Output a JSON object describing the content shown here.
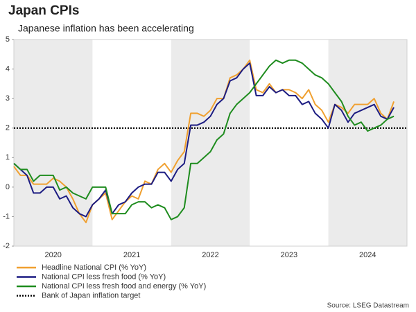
{
  "chart_data": {
    "type": "line",
    "title": "Japan CPIs",
    "subtitle": "Japanese inflation has been accelerating",
    "source": "Source: LSEG Datastream",
    "x": [
      2020,
      2020.083,
      2020.167,
      2020.25,
      2020.333,
      2020.417,
      2020.5,
      2020.583,
      2020.667,
      2020.75,
      2020.833,
      2020.917,
      2021,
      2021.083,
      2021.167,
      2021.25,
      2021.333,
      2021.417,
      2021.5,
      2021.583,
      2021.667,
      2021.75,
      2021.833,
      2021.917,
      2022,
      2022.083,
      2022.167,
      2022.25,
      2022.333,
      2022.417,
      2022.5,
      2022.583,
      2022.667,
      2022.75,
      2022.833,
      2022.917,
      2023,
      2023.083,
      2023.167,
      2023.25,
      2023.333,
      2023.417,
      2023.5,
      2023.583,
      2023.667,
      2023.75,
      2023.833,
      2023.917,
      2024,
      2024.083,
      2024.167,
      2024.25,
      2024.333,
      2024.417,
      2024.5,
      2024.583,
      2024.667,
      2024.75,
      2024.833
    ],
    "xlim": [
      2020,
      2025
    ],
    "xticks": [
      {
        "value": 2020.5,
        "label": "2020"
      },
      {
        "value": 2021.5,
        "label": "2021"
      },
      {
        "value": 2022.5,
        "label": "2022"
      },
      {
        "value": 2023.5,
        "label": "2023"
      },
      {
        "value": 2024.5,
        "label": "2024"
      }
    ],
    "shaded_bands": [
      [
        2020,
        2021
      ],
      [
        2022,
        2023
      ],
      [
        2024,
        2025
      ]
    ],
    "ylim": [
      -2,
      5
    ],
    "yticks": [
      -2,
      -1,
      0,
      1,
      2,
      3,
      4,
      5
    ],
    "series": [
      {
        "name": "Headline National CPI (% YoY)",
        "color": "#f0a030",
        "values": [
          0.7,
          0.4,
          0.4,
          0.1,
          0.1,
          0.1,
          0.3,
          0.2,
          0.0,
          -0.4,
          -0.9,
          -1.2,
          -0.6,
          -0.4,
          -0.2,
          -1.1,
          -0.8,
          -0.5,
          -0.3,
          -0.4,
          0.2,
          0.1,
          0.6,
          0.8,
          0.5,
          0.9,
          1.2,
          2.5,
          2.5,
          2.4,
          2.6,
          3.0,
          3.0,
          3.7,
          3.8,
          4.0,
          4.3,
          3.3,
          3.2,
          3.5,
          3.2,
          3.3,
          3.3,
          3.2,
          3.0,
          3.3,
          2.8,
          2.6,
          2.2,
          2.8,
          2.7,
          2.5,
          2.8,
          2.8,
          2.8,
          3.0,
          2.5,
          2.3,
          2.9
        ]
      },
      {
        "name": "National CPI less fresh food (% YoY)",
        "color": "#1c1c82",
        "values": [
          0.8,
          0.6,
          0.4,
          -0.2,
          -0.2,
          0.0,
          0.0,
          -0.4,
          -0.3,
          -0.7,
          -0.9,
          -1.0,
          -0.6,
          -0.4,
          -0.1,
          -0.9,
          -0.6,
          -0.5,
          -0.2,
          0.0,
          0.1,
          0.1,
          0.5,
          0.5,
          0.2,
          0.6,
          0.8,
          2.1,
          2.1,
          2.2,
          2.4,
          2.8,
          3.0,
          3.6,
          3.7,
          4.0,
          4.2,
          3.1,
          3.1,
          3.4,
          3.2,
          3.3,
          3.1,
          3.1,
          2.8,
          2.9,
          2.5,
          2.3,
          2.0,
          2.8,
          2.6,
          2.2,
          2.5,
          2.6,
          2.7,
          2.8,
          2.4,
          2.3,
          2.7
        ]
      },
      {
        "name": "National CPI less fresh food and energy (% YoY)",
        "color": "#1e8c1e",
        "values": [
          0.8,
          0.6,
          0.6,
          0.2,
          0.4,
          0.4,
          0.4,
          -0.1,
          0.0,
          -0.2,
          -0.3,
          -0.4,
          0.0,
          0.0,
          0.0,
          -0.9,
          -0.9,
          -0.9,
          -0.6,
          -0.5,
          -0.5,
          -0.7,
          -0.6,
          -0.7,
          -1.1,
          -1.0,
          -0.7,
          0.8,
          0.8,
          1.0,
          1.2,
          1.6,
          1.8,
          2.5,
          2.8,
          3.0,
          3.2,
          3.5,
          3.8,
          4.1,
          4.3,
          4.2,
          4.3,
          4.3,
          4.2,
          4.0,
          3.8,
          3.7,
          3.5,
          3.2,
          2.9,
          2.4,
          2.1,
          2.2,
          1.9,
          2.0,
          2.1,
          2.3,
          2.4
        ]
      }
    ],
    "target": {
      "name": "Bank of Japan inflation target",
      "value": 2,
      "color": "#000000"
    }
  }
}
